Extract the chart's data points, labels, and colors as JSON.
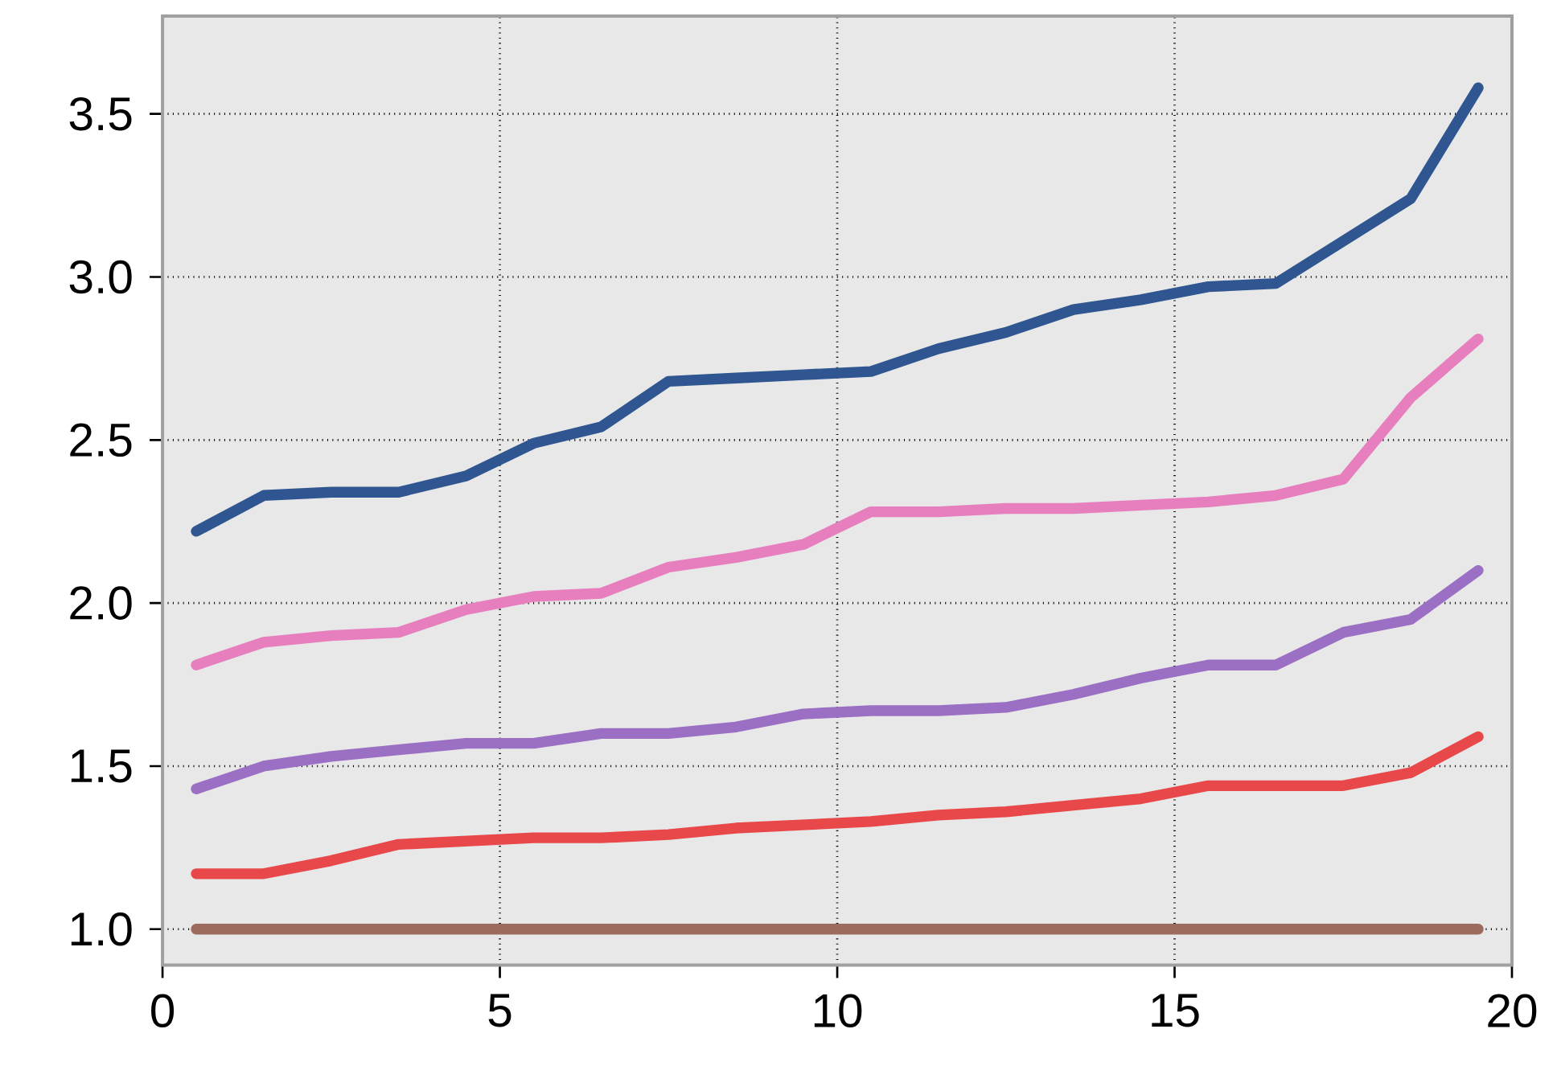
{
  "chart_data": {
    "type": "line",
    "x": [
      0.5,
      1.5,
      2.5,
      3.5,
      4.5,
      5.5,
      6.5,
      7.5,
      8.5,
      9.5,
      10.5,
      11.5,
      12.5,
      13.5,
      14.5,
      15.5,
      16.5,
      17.5,
      18.5,
      19.5
    ],
    "series": [
      {
        "color": "#2f5690",
        "values": [
          2.22,
          2.33,
          2.34,
          2.34,
          2.39,
          2.49,
          2.54,
          2.68,
          2.69,
          2.7,
          2.71,
          2.78,
          2.83,
          2.9,
          2.93,
          2.97,
          2.98,
          3.11,
          3.24,
          3.58
        ]
      },
      {
        "color": "#e77fbf",
        "values": [
          1.81,
          1.88,
          1.9,
          1.91,
          1.98,
          2.02,
          2.03,
          2.11,
          2.14,
          2.18,
          2.28,
          2.28,
          2.29,
          2.29,
          2.3,
          2.31,
          2.33,
          2.38,
          2.63,
          2.81
        ]
      },
      {
        "color": "#9b6fc4",
        "values": [
          1.43,
          1.5,
          1.53,
          1.55,
          1.57,
          1.57,
          1.6,
          1.6,
          1.62,
          1.66,
          1.67,
          1.67,
          1.68,
          1.72,
          1.77,
          1.81,
          1.81,
          1.91,
          1.95,
          2.1
        ]
      },
      {
        "color": "#e8484a",
        "values": [
          1.17,
          1.17,
          1.21,
          1.26,
          1.27,
          1.28,
          1.28,
          1.29,
          1.31,
          1.32,
          1.33,
          1.35,
          1.36,
          1.38,
          1.4,
          1.44,
          1.44,
          1.44,
          1.48,
          1.59
        ]
      },
      {
        "color": "#9c6b5e",
        "values": [
          1.0,
          1.0,
          1.0,
          1.0,
          1.0,
          1.0,
          1.0,
          1.0,
          1.0,
          1.0,
          1.0,
          1.0,
          1.0,
          1.0,
          1.0,
          1.0,
          1.0,
          1.0,
          1.0,
          1.0
        ]
      }
    ],
    "xlim": [
      0,
      20
    ],
    "ylim": [
      0.89,
      3.8
    ],
    "xticks": [
      0,
      5,
      10,
      15,
      20
    ],
    "yticks": [
      {
        "value": 1.0,
        "label": "1.0"
      },
      {
        "value": 1.5,
        "label": "1.5"
      },
      {
        "value": 2.0,
        "label": "2.0"
      },
      {
        "value": 2.5,
        "label": "2.5"
      },
      {
        "value": 3.0,
        "label": "3.0"
      },
      {
        "value": 3.5,
        "label": "3.5"
      }
    ],
    "grid": true,
    "line_style": "solid",
    "marker": "none"
  }
}
